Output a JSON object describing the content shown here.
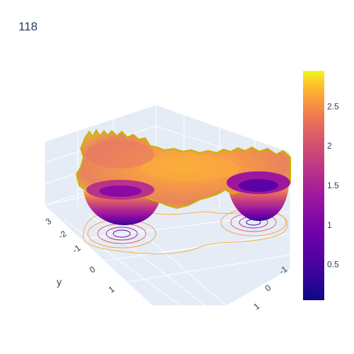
{
  "chart_data": {
    "type": "surface",
    "title": "118",
    "colorscale": "plasma",
    "colorbar": {
      "range": [
        0.05,
        2.95
      ],
      "ticks": [
        "0.5",
        "1",
        "1.5",
        "2",
        "2.5"
      ],
      "tick_values": [
        0.5,
        1,
        1.5,
        2,
        2.5
      ]
    },
    "axes": {
      "x": {
        "title": "",
        "ticks": [
          "1",
          "0",
          "-1"
        ]
      },
      "y": {
        "title": "y",
        "ticks": [
          "3",
          "-2",
          "-1",
          "0",
          "1"
        ]
      },
      "z": {
        "title": "",
        "ticks": []
      }
    },
    "surface_features": [
      {
        "name": "left well",
        "x": -1,
        "y": 0,
        "min": 0.1
      },
      {
        "name": "right well",
        "x": 1,
        "y": 0,
        "min": 0.1
      },
      {
        "name": "plateau",
        "level": 2.6
      }
    ],
    "contours_projected": true,
    "background_grid": true
  }
}
